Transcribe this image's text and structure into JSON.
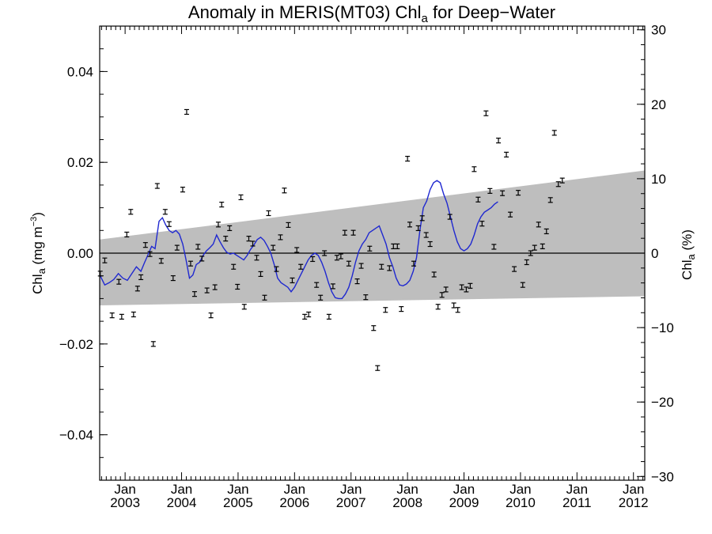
{
  "chart_data": {
    "type": "scatter",
    "title": {
      "prefix": "Anomaly in MERIS(MT03) Chl",
      "sub": "a",
      "suffix": " for Deep−Water"
    },
    "ylabel_left": {
      "prefix": "Chl",
      "sub": "a",
      "suffix": " (mg m",
      "sup": "−3",
      "end": ")"
    },
    "ylabel_right": {
      "prefix": "Chl",
      "sub": "a",
      "suffix": " (%)"
    },
    "xlim": [
      2002.55,
      2012.2
    ],
    "ylim": [
      -0.05,
      0.05
    ],
    "ylim_right": [
      -30.5,
      30.5
    ],
    "yticks_left": [
      {
        "v": 0.04,
        "label": "0.04"
      },
      {
        "v": 0.02,
        "label": "0.02"
      },
      {
        "v": 0.0,
        "label": "0.00"
      },
      {
        "v": -0.02,
        "label": "−0.02"
      },
      {
        "v": -0.04,
        "label": "−0.04"
      }
    ],
    "yticks_right": [
      {
        "v": 30,
        "label": "30"
      },
      {
        "v": 20,
        "label": "20"
      },
      {
        "v": 10,
        "label": "10"
      },
      {
        "v": 0,
        "label": "0"
      },
      {
        "v": -10,
        "label": "−10"
      },
      {
        "v": -20,
        "label": "−20"
      },
      {
        "v": -30,
        "label": "−30"
      }
    ],
    "xticks": [
      {
        "v": 2003.0,
        "month": "Jan",
        "year": "2003"
      },
      {
        "v": 2004.0,
        "month": "Jan",
        "year": "2004"
      },
      {
        "v": 2005.0,
        "month": "Jan",
        "year": "2005"
      },
      {
        "v": 2006.0,
        "month": "Jan",
        "year": "2006"
      },
      {
        "v": 2007.0,
        "month": "Jan",
        "year": "2007"
      },
      {
        "v": 2008.0,
        "month": "Jan",
        "year": "2008"
      },
      {
        "v": 2009.0,
        "month": "Jan",
        "year": "2009"
      },
      {
        "v": 2010.0,
        "month": "Jan",
        "year": "2010"
      },
      {
        "v": 2011.0,
        "month": "Jan",
        "year": "2011"
      },
      {
        "v": 2012.0,
        "month": "Jan",
        "year": "2012"
      }
    ],
    "band": {
      "upper": [
        [
          2002.55,
          0.003
        ],
        [
          2012.2,
          0.0182
        ]
      ],
      "lower": [
        [
          2002.55,
          -0.0115
        ],
        [
          2012.2,
          -0.0095
        ]
      ]
    },
    "zero_line": 0,
    "points": [
      [
        2002.56,
        -0.0045
      ],
      [
        2002.64,
        -0.0016
      ],
      [
        2002.77,
        -0.0137
      ],
      [
        2002.89,
        -0.0063
      ],
      [
        2002.94,
        -0.014
      ],
      [
        2003.03,
        0.0041
      ],
      [
        2003.1,
        0.0091
      ],
      [
        2003.15,
        -0.0135
      ],
      [
        2003.22,
        -0.0078
      ],
      [
        2003.28,
        -0.0053
      ],
      [
        2003.36,
        0.0018
      ],
      [
        2003.44,
        -0.0002
      ],
      [
        2003.5,
        -0.02
      ],
      [
        2003.57,
        0.0148
      ],
      [
        2003.64,
        -0.0017
      ],
      [
        2003.71,
        0.0091
      ],
      [
        2003.78,
        0.0064
      ],
      [
        2003.85,
        -0.0055
      ],
      [
        2003.92,
        0.0012
      ],
      [
        2004.02,
        0.014
      ],
      [
        2004.09,
        0.0311
      ],
      [
        2004.16,
        -0.0023
      ],
      [
        2004.23,
        -0.009
      ],
      [
        2004.29,
        0.0014
      ],
      [
        2004.36,
        -0.0012
      ],
      [
        2004.45,
        -0.0082
      ],
      [
        2004.52,
        -0.0137
      ],
      [
        2004.59,
        -0.0075
      ],
      [
        2004.65,
        0.0063
      ],
      [
        2004.71,
        0.0107
      ],
      [
        2004.78,
        0.0032
      ],
      [
        2004.85,
        0.0055
      ],
      [
        2004.92,
        -0.003
      ],
      [
        2004.99,
        -0.0074
      ],
      [
        2005.05,
        0.0123
      ],
      [
        2005.11,
        -0.0118
      ],
      [
        2005.19,
        0.0032
      ],
      [
        2005.26,
        0.0021
      ],
      [
        2005.33,
        -0.001
      ],
      [
        2005.4,
        -0.0046
      ],
      [
        2005.47,
        -0.0098
      ],
      [
        2005.54,
        0.0088
      ],
      [
        2005.62,
        0.0012
      ],
      [
        2005.68,
        -0.0035
      ],
      [
        2005.75,
        0.0035
      ],
      [
        2005.82,
        0.0138
      ],
      [
        2005.89,
        0.0062
      ],
      [
        2005.96,
        -0.006
      ],
      [
        2006.04,
        0.0007
      ],
      [
        2006.11,
        -0.003
      ],
      [
        2006.18,
        -0.014
      ],
      [
        2006.25,
        -0.0135
      ],
      [
        2006.32,
        -0.0013
      ],
      [
        2006.39,
        -0.007
      ],
      [
        2006.46,
        -0.0098
      ],
      [
        2006.53,
        0.0
      ],
      [
        2006.61,
        -0.014
      ],
      [
        2006.68,
        -0.0073
      ],
      [
        2006.75,
        -0.001
      ],
      [
        2006.82,
        -0.0007
      ],
      [
        2006.89,
        0.0045
      ],
      [
        2006.96,
        -0.0023
      ],
      [
        2007.04,
        0.0045
      ],
      [
        2007.11,
        -0.0062
      ],
      [
        2007.18,
        -0.0028
      ],
      [
        2007.26,
        -0.0097
      ],
      [
        2007.33,
        0.001
      ],
      [
        2007.4,
        -0.0165
      ],
      [
        2007.47,
        -0.0253
      ],
      [
        2007.54,
        -0.003
      ],
      [
        2007.61,
        -0.0125
      ],
      [
        2007.68,
        -0.0033
      ],
      [
        2007.75,
        0.0015
      ],
      [
        2007.82,
        0.0015
      ],
      [
        2007.89,
        -0.0123
      ],
      [
        2008.0,
        0.0208
      ],
      [
        2008.04,
        0.0063
      ],
      [
        2008.11,
        -0.0023
      ],
      [
        2008.19,
        0.0055
      ],
      [
        2008.26,
        0.0077
      ],
      [
        2008.33,
        0.004
      ],
      [
        2008.4,
        0.002
      ],
      [
        2008.47,
        -0.0047
      ],
      [
        2008.54,
        -0.0118
      ],
      [
        2008.61,
        -0.0092
      ],
      [
        2008.68,
        -0.008
      ],
      [
        2008.75,
        0.008
      ],
      [
        2008.82,
        -0.0115
      ],
      [
        2008.89,
        -0.0125
      ],
      [
        2008.96,
        -0.0075
      ],
      [
        2009.04,
        -0.008
      ],
      [
        2009.11,
        -0.0072
      ],
      [
        2009.18,
        0.0185
      ],
      [
        2009.25,
        0.0118
      ],
      [
        2009.32,
        0.0065
      ],
      [
        2009.39,
        0.0308
      ],
      [
        2009.46,
        0.0137
      ],
      [
        2009.53,
        0.0014
      ],
      [
        2009.61,
        0.0248
      ],
      [
        2009.68,
        0.0132
      ],
      [
        2009.75,
        0.0217
      ],
      [
        2009.82,
        0.0085
      ],
      [
        2009.89,
        -0.0035
      ],
      [
        2009.96,
        0.0133
      ],
      [
        2010.04,
        -0.007
      ],
      [
        2010.11,
        -0.002
      ],
      [
        2010.18,
        0.0
      ],
      [
        2010.25,
        0.0012
      ],
      [
        2010.32,
        0.0063
      ],
      [
        2010.39,
        0.0015
      ],
      [
        2010.46,
        0.0048
      ],
      [
        2010.53,
        0.0117
      ],
      [
        2010.6,
        0.0265
      ],
      [
        2010.67,
        0.0152
      ],
      [
        2010.74,
        0.016
      ]
    ],
    "line": [
      [
        2002.56,
        -0.005
      ],
      [
        2002.64,
        -0.007
      ],
      [
        2002.72,
        -0.0065
      ],
      [
        2002.8,
        -0.0058
      ],
      [
        2002.88,
        -0.0045
      ],
      [
        2002.96,
        -0.0055
      ],
      [
        2003.04,
        -0.006
      ],
      [
        2003.12,
        -0.0045
      ],
      [
        2003.2,
        -0.003
      ],
      [
        2003.28,
        -0.004
      ],
      [
        2003.34,
        -0.0022
      ],
      [
        2003.4,
        -0.0005
      ],
      [
        2003.47,
        0.0015
      ],
      [
        2003.53,
        0.001
      ],
      [
        2003.6,
        0.007
      ],
      [
        2003.66,
        0.0078
      ],
      [
        2003.72,
        0.0062
      ],
      [
        2003.78,
        0.005
      ],
      [
        2003.84,
        0.0045
      ],
      [
        2003.9,
        0.005
      ],
      [
        2003.96,
        0.0042
      ],
      [
        2004.02,
        0.002
      ],
      [
        2004.08,
        -0.0015
      ],
      [
        2004.14,
        -0.0055
      ],
      [
        2004.2,
        -0.0048
      ],
      [
        2004.26,
        -0.0025
      ],
      [
        2004.32,
        -0.002
      ],
      [
        2004.38,
        -0.0005
      ],
      [
        2004.44,
        0.0005
      ],
      [
        2004.5,
        0.0012
      ],
      [
        2004.56,
        0.002
      ],
      [
        2004.62,
        0.004
      ],
      [
        2004.68,
        0.0025
      ],
      [
        2004.74,
        0.0012
      ],
      [
        2004.8,
        0.0002
      ],
      [
        2004.86,
        -0.0002
      ],
      [
        2004.92,
        0.0
      ],
      [
        2004.98,
        -0.0005
      ],
      [
        2005.04,
        -0.001
      ],
      [
        2005.1,
        -0.0015
      ],
      [
        2005.16,
        -0.0005
      ],
      [
        2005.22,
        0.0008
      ],
      [
        2005.28,
        0.0018
      ],
      [
        2005.34,
        0.003
      ],
      [
        2005.4,
        0.0035
      ],
      [
        2005.46,
        0.0028
      ],
      [
        2005.52,
        0.0015
      ],
      [
        2005.58,
        0.0
      ],
      [
        2005.64,
        -0.0025
      ],
      [
        2005.7,
        -0.0055
      ],
      [
        2005.76,
        -0.0065
      ],
      [
        2005.82,
        -0.007
      ],
      [
        2005.88,
        -0.0075
      ],
      [
        2005.94,
        -0.0085
      ],
      [
        2006.0,
        -0.0075
      ],
      [
        2006.06,
        -0.006
      ],
      [
        2006.12,
        -0.0045
      ],
      [
        2006.18,
        -0.003
      ],
      [
        2006.24,
        -0.0015
      ],
      [
        2006.3,
        -0.0005
      ],
      [
        2006.36,
        0.0
      ],
      [
        2006.42,
        -0.0005
      ],
      [
        2006.48,
        -0.002
      ],
      [
        2006.54,
        -0.004
      ],
      [
        2006.6,
        -0.0065
      ],
      [
        2006.66,
        -0.0085
      ],
      [
        2006.72,
        -0.0098
      ],
      [
        2006.78,
        -0.01
      ],
      [
        2006.84,
        -0.01
      ],
      [
        2006.9,
        -0.009
      ],
      [
        2006.96,
        -0.0075
      ],
      [
        2007.02,
        -0.005
      ],
      [
        2007.08,
        -0.002
      ],
      [
        2007.14,
        0.0005
      ],
      [
        2007.2,
        0.002
      ],
      [
        2007.26,
        0.003
      ],
      [
        2007.32,
        0.0045
      ],
      [
        2007.38,
        0.005
      ],
      [
        2007.44,
        0.0055
      ],
      [
        2007.5,
        0.006
      ],
      [
        2007.56,
        0.004
      ],
      [
        2007.62,
        0.002
      ],
      [
        2007.68,
        -0.001
      ],
      [
        2007.74,
        -0.003
      ],
      [
        2007.8,
        -0.0055
      ],
      [
        2007.86,
        -0.007
      ],
      [
        2007.92,
        -0.0072
      ],
      [
        2007.98,
        -0.0068
      ],
      [
        2008.04,
        -0.006
      ],
      [
        2008.1,
        -0.004
      ],
      [
        2008.16,
        -0.001
      ],
      [
        2008.22,
        0.005
      ],
      [
        2008.28,
        0.01
      ],
      [
        2008.34,
        0.0115
      ],
      [
        2008.4,
        0.014
      ],
      [
        2008.46,
        0.0155
      ],
      [
        2008.52,
        0.016
      ],
      [
        2008.58,
        0.0155
      ],
      [
        2008.64,
        0.013
      ],
      [
        2008.7,
        0.011
      ],
      [
        2008.76,
        0.008
      ],
      [
        2008.82,
        0.005
      ],
      [
        2008.88,
        0.0025
      ],
      [
        2008.94,
        0.001
      ],
      [
        2009.0,
        0.0005
      ],
      [
        2009.06,
        0.001
      ],
      [
        2009.12,
        0.002
      ],
      [
        2009.18,
        0.004
      ],
      [
        2009.24,
        0.0065
      ],
      [
        2009.3,
        0.008
      ],
      [
        2009.36,
        0.009
      ],
      [
        2009.42,
        0.0095
      ],
      [
        2009.48,
        0.01
      ],
      [
        2009.54,
        0.0108
      ],
      [
        2009.6,
        0.0113
      ]
    ],
    "series_color": "#1f28d0",
    "band_color": "#bebebe"
  }
}
